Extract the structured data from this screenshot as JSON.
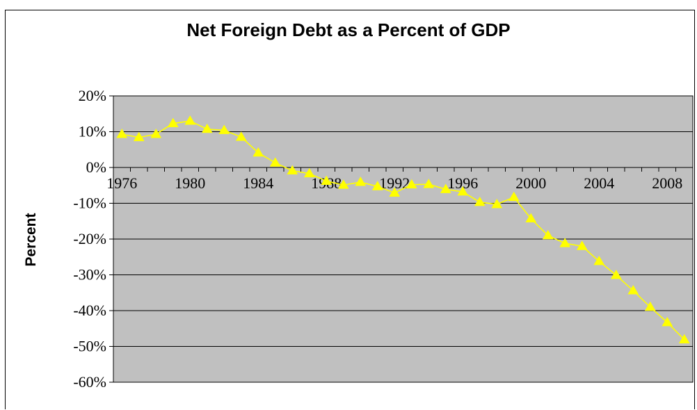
{
  "chart_data": {
    "type": "line",
    "title": "Net Foreign Debt as a Percent of GDP",
    "ylabel": "Percent",
    "xlabel": "",
    "x": [
      1976,
      1977,
      1978,
      1979,
      1980,
      1981,
      1982,
      1983,
      1984,
      1985,
      1986,
      1987,
      1988,
      1989,
      1990,
      1991,
      1992,
      1993,
      1994,
      1995,
      1996,
      1997,
      1998,
      1999,
      2000,
      2001,
      2002,
      2003,
      2004,
      2005,
      2006,
      2007,
      2008,
      2009
    ],
    "series": [
      {
        "values": [
          9.3,
          8.4,
          9.3,
          12.3,
          13,
          10.7,
          10.4,
          8.5,
          4.1,
          1.3,
          -0.9,
          -1.7,
          -3.8,
          -4.9,
          -4.1,
          -5.3,
          -7.1,
          -4.8,
          -4.7,
          -6.1,
          -6.8,
          -9.7,
          -10.3,
          -8.3,
          -14.3,
          -19,
          -21.2,
          -22,
          -26.2,
          -30.1,
          -34.4,
          -39,
          -43.3,
          -48.1
        ],
        "color": "#ffff00"
      }
    ],
    "xticks": [
      1976,
      1980,
      1984,
      1988,
      1992,
      1996,
      2000,
      2004,
      2008
    ],
    "yticks": [
      20,
      10,
      0,
      -10,
      -20,
      -30,
      -40,
      -50,
      -60
    ],
    "ytick_labels": [
      "20%",
      "10%",
      "0%",
      "-10%",
      "-20%",
      "-30%",
      "-40%",
      "-50%",
      "-60%"
    ],
    "ylim": [
      -60,
      20
    ],
    "xlim": [
      1975.5,
      2009.5
    ],
    "grid": true,
    "plot_background": "#c0c0c0"
  }
}
